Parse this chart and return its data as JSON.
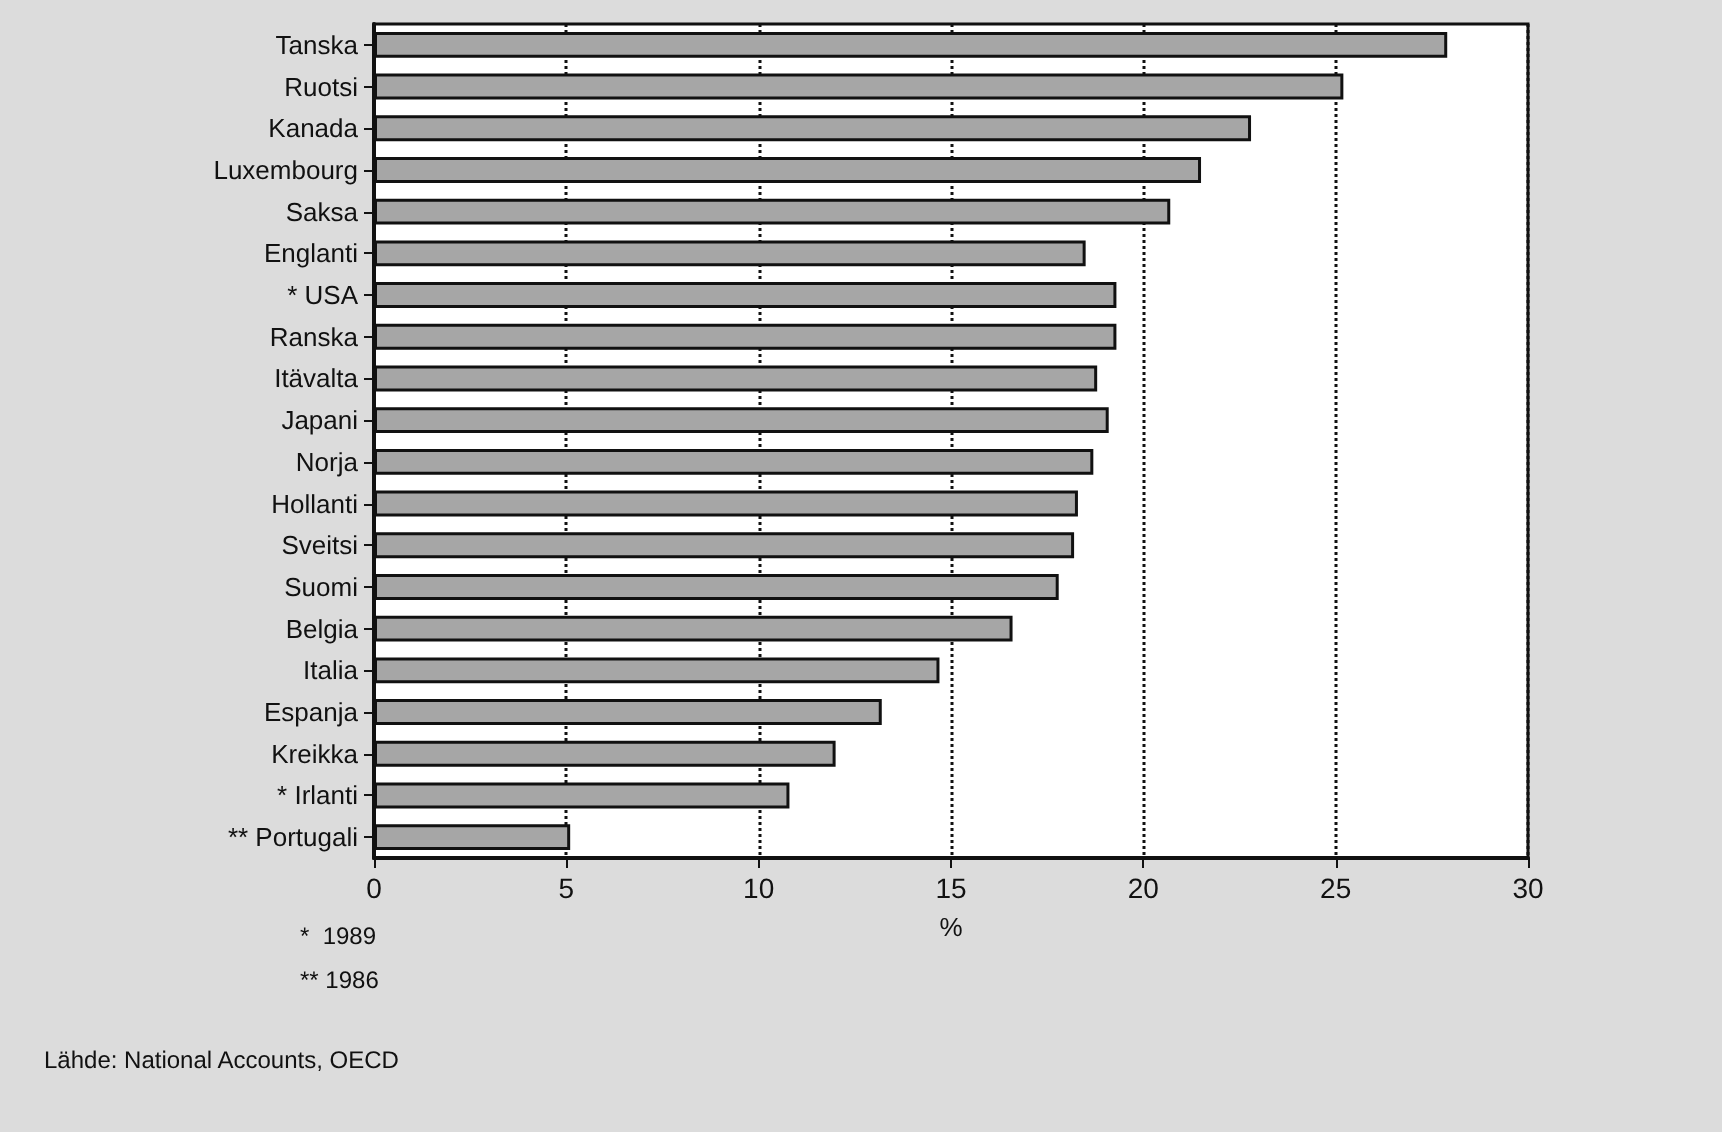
{
  "chart_data": {
    "type": "bar",
    "orientation": "horizontal",
    "categories": [
      "Tanska",
      "Ruotsi",
      "Kanada",
      "Luxembourg",
      "Saksa",
      "Englanti",
      "* USA",
      "Ranska",
      "Itävalta",
      "Japani",
      "Norja",
      "Hollanti",
      "Sveitsi",
      "Suomi",
      "Belgia",
      "Italia",
      "Espanja",
      "Kreikka",
      "* Irlanti",
      "** Portugali"
    ],
    "values": [
      27.9,
      25.2,
      22.8,
      21.5,
      20.7,
      18.5,
      19.3,
      19.3,
      18.8,
      19.1,
      18.7,
      18.3,
      18.2,
      17.8,
      16.6,
      14.7,
      13.2,
      12.0,
      10.8,
      5.1
    ],
    "color": "#a6a6a6",
    "xlim": [
      0,
      30
    ],
    "xticks": [
      0,
      5,
      10,
      15,
      20,
      25,
      30
    ],
    "xlabel": "%",
    "grid": "x",
    "annotations": [
      "*  1989",
      "** 1986",
      "Lähde: National Accounts, OECD"
    ]
  }
}
